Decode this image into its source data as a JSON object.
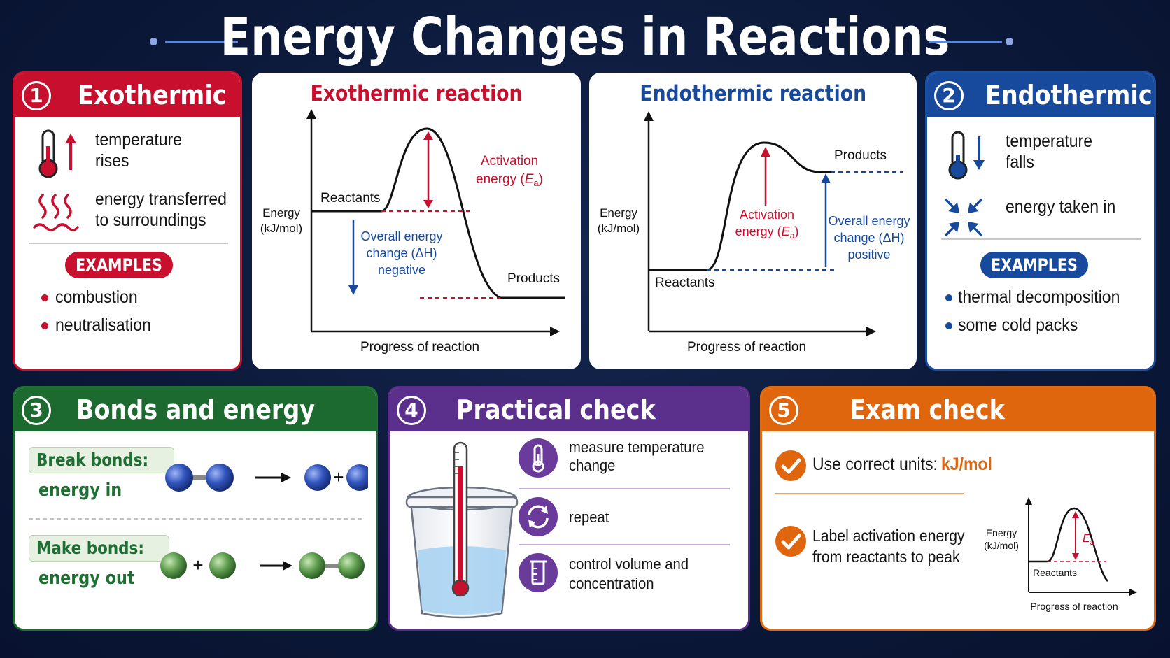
{
  "title": "Energy Changes in Reactions",
  "colors": {
    "background": "#0b1838",
    "exothermic": "#c8102e",
    "endothermic": "#174a9c",
    "bonds": "#1d6a31",
    "practical": "#5b2f8c",
    "exam": "#e0660e"
  },
  "exothermic": {
    "number": "1",
    "heading": "Exothermic",
    "items": [
      {
        "icon": "thermometer-up-icon",
        "line1": "temperature",
        "line2": "rises"
      },
      {
        "icon": "heat-waves-icon",
        "line1": "energy transferred",
        "line2": "to surroundings"
      }
    ],
    "examples_label": "EXAMPLES",
    "examples": [
      "combustion",
      "neutralisation"
    ]
  },
  "exo_graph": {
    "title": "Exothermic reaction",
    "ylabel_line1": "Energy",
    "ylabel_line2": "(kJ/mol)",
    "xlabel": "Progress of reaction",
    "reactants": "Reactants",
    "products": "Products",
    "activation_line1": "Activation",
    "activation_line2": "energy (",
    "activation_symbol": "E",
    "activation_sub": "a",
    "overall_line1": "Overall energy",
    "overall_line2": "change (ΔH)",
    "overall_line3": "negative"
  },
  "endo_graph": {
    "title": "Endothermic reaction",
    "ylabel_line1": "Energy",
    "ylabel_line2": "(kJ/mol)",
    "xlabel": "Progress of reaction",
    "reactants": "Reactants",
    "products": "Products",
    "activation_line1": "Activation",
    "activation_line2": "energy (",
    "activation_symbol": "E",
    "activation_sub": "a",
    "overall_line1": "Overall energy",
    "overall_line2": "change (ΔH)",
    "overall_line3": "positive"
  },
  "endothermic": {
    "number": "2",
    "heading": "Endothermic",
    "items": [
      {
        "icon": "thermometer-down-icon",
        "line1": "temperature",
        "line2": "falls"
      },
      {
        "icon": "arrows-inward-icon",
        "line1": "energy taken in",
        "line2": ""
      }
    ],
    "examples_label": "EXAMPLES",
    "examples": [
      "thermal decomposition",
      "some cold packs"
    ]
  },
  "bonds": {
    "number": "3",
    "heading": "Bonds and energy",
    "break_label": "Break bonds:",
    "break_result": "energy in",
    "make_label": "Make bonds:",
    "make_result": "energy out",
    "plus": "+"
  },
  "practical": {
    "number": "4",
    "heading": "Practical check",
    "items": [
      {
        "icon": "thermometer-icon",
        "line1": "measure temperature",
        "line2": "change"
      },
      {
        "icon": "repeat-icon",
        "line1": "repeat",
        "line2": ""
      },
      {
        "icon": "measuring-cylinder-icon",
        "line1": "control volume and",
        "line2": "concentration"
      }
    ]
  },
  "exam": {
    "number": "5",
    "heading": "Exam check",
    "check1_text": "Use correct units:",
    "check1_unit": "kJ/mol",
    "check2_line1": "Label activation energy",
    "check2_line2": "from reactants to peak",
    "mini_graph": {
      "ylabel_line1": "Energy",
      "ylabel_line2": "(kJ/mol)",
      "xlabel": "Progress of reaction",
      "reactants": "Reactants",
      "ea_symbol": "E",
      "ea_sub": "a"
    }
  }
}
